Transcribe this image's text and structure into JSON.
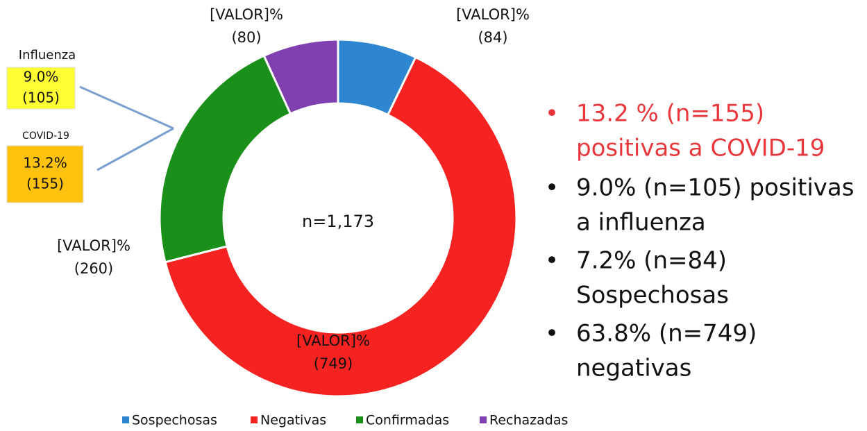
{
  "chart_data": {
    "type": "donut",
    "categories": [
      "Sospechosas",
      "Negativas",
      "Confirmadas",
      "Rechazadas"
    ],
    "values": [
      84,
      749,
      260,
      80
    ],
    "value_labels": [
      "(84)",
      "(749)",
      "(260)",
      "(80)"
    ],
    "placeholder_label": "[VALOR]%",
    "colors": [
      "#2e86d0",
      "#f52222",
      "#1a8f1a",
      "#8040b0"
    ],
    "center_label": "n=1,173",
    "legend": "bottom"
  },
  "callouts": [
    {
      "title": "Influenza",
      "value": "9.0%",
      "count": "(105)",
      "color": "#ffff33"
    },
    {
      "title": "COVID-19",
      "value": "13.2%",
      "count": "(155)",
      "color": "#ffc20e"
    }
  ],
  "bullet_symbol": "•",
  "bullets": [
    {
      "lines": [
        "13.2 % (n=155)",
        "positivas a COVID-19"
      ],
      "color": "#e8383d"
    },
    {
      "lines": [
        "9.0% (n=105) positivas",
        "a influenza"
      ],
      "color": "#111111"
    },
    {
      "lines": [
        "7.2%  (n=84)",
        "Sospechosas"
      ],
      "color": "#111111"
    },
    {
      "lines": [
        "63.8% (n=749)",
        "negativas"
      ],
      "color": "#111111"
    }
  ]
}
